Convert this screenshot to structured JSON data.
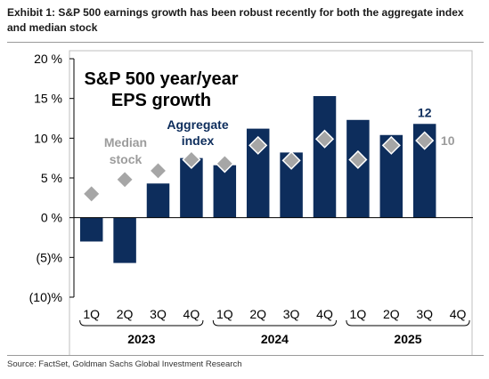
{
  "exhibit_title": "Exhibit 1: S&P 500 earnings growth has been robust recently for both the aggregate index and median stock",
  "source": "Source: FactSet, Goldman Sachs Global Investment Research",
  "colors": {
    "bar": "#0d2d5c",
    "marker": "#a6a6a6",
    "marker_edge": "#ffffff",
    "annotation_bar": "#0d2d5c",
    "annotation_marker": "#9c9c9c",
    "axis": "#000000"
  },
  "chart_data": {
    "type": "bar",
    "title": "S&P 500 year/year EPS growth",
    "categories": [
      "1Q",
      "2Q",
      "3Q",
      "4Q",
      "1Q",
      "2Q",
      "3Q",
      "4Q",
      "1Q",
      "2Q",
      "3Q",
      "4Q"
    ],
    "groups": [
      {
        "label": "2023",
        "span": [
          0,
          3
        ]
      },
      {
        "label": "2024",
        "span": [
          4,
          7
        ]
      },
      {
        "label": "2025",
        "span": [
          8,
          11
        ]
      }
    ],
    "series": [
      {
        "name": "Aggregate index",
        "type": "bar",
        "values": [
          -3.0,
          -5.7,
          4.3,
          7.5,
          6.6,
          11.2,
          8.2,
          15.3,
          12.3,
          10.4,
          11.8,
          null
        ]
      },
      {
        "name": "Median stock",
        "type": "marker",
        "values": [
          3.0,
          4.8,
          5.9,
          7.3,
          6.8,
          9.1,
          7.2,
          9.9,
          7.3,
          9.1,
          9.7,
          null
        ]
      }
    ],
    "annotations": [
      {
        "text": "12",
        "series": "Aggregate index",
        "index": 10
      },
      {
        "text": "10",
        "series": "Median stock",
        "index": 10
      }
    ],
    "y_ticks": [
      {
        "value": 20,
        "label": "20 %"
      },
      {
        "value": 15,
        "label": "15 %"
      },
      {
        "value": 10,
        "label": "10 %"
      },
      {
        "value": 5,
        "label": "5 %"
      },
      {
        "value": 0,
        "label": "0 %"
      },
      {
        "value": -5,
        "label": "(5)%"
      },
      {
        "value": -10,
        "label": "(10)%"
      }
    ],
    "ylim": [
      -10,
      20
    ],
    "grid": false,
    "legend": "in-plot labels"
  }
}
